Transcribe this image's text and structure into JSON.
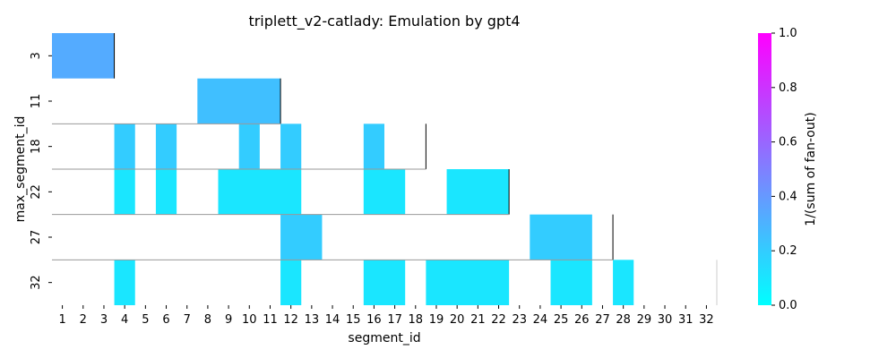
{
  "chart_data": {
    "type": "heatmap",
    "title": "triplett_v2-catlady: Emulation by gpt4",
    "xlabel": "segment_id",
    "ylabel": "max_segment_id",
    "x_ticks": [
      "1",
      "2",
      "3",
      "4",
      "5",
      "6",
      "7",
      "8",
      "9",
      "10",
      "11",
      "12",
      "13",
      "14",
      "15",
      "16",
      "17",
      "18",
      "19",
      "20",
      "21",
      "22",
      "23",
      "24",
      "25",
      "26",
      "27",
      "28",
      "29",
      "30",
      "31",
      "32"
    ],
    "rows": [
      {
        "label": "3",
        "cells": [
          {
            "from": 1,
            "to": 3,
            "value": 0.33
          }
        ]
      },
      {
        "label": "11",
        "cells": [
          {
            "from": 8,
            "to": 11,
            "value": 0.25
          }
        ]
      },
      {
        "label": "18",
        "cells": [
          {
            "from": 4,
            "to": 4,
            "value": 0.2
          },
          {
            "from": 6,
            "to": 6,
            "value": 0.2
          },
          {
            "from": 10,
            "to": 10,
            "value": 0.2
          },
          {
            "from": 12,
            "to": 12,
            "value": 0.2
          },
          {
            "from": 16,
            "to": 16,
            "value": 0.2
          }
        ]
      },
      {
        "label": "22",
        "cells": [
          {
            "from": 4,
            "to": 4,
            "value": 0.1
          },
          {
            "from": 6,
            "to": 6,
            "value": 0.1
          },
          {
            "from": 9,
            "to": 12,
            "value": 0.1
          },
          {
            "from": 16,
            "to": 17,
            "value": 0.1
          },
          {
            "from": 20,
            "to": 22,
            "value": 0.1
          }
        ]
      },
      {
        "label": "27",
        "cells": [
          {
            "from": 12,
            "to": 13,
            "value": 0.2
          },
          {
            "from": 24,
            "to": 26,
            "value": 0.2
          }
        ]
      },
      {
        "label": "32",
        "cells": [
          {
            "from": 4,
            "to": 4,
            "value": 0.1
          },
          {
            "from": 12,
            "to": 12,
            "value": 0.1
          },
          {
            "from": 16,
            "to": 17,
            "value": 0.1
          },
          {
            "from": 19,
            "to": 22,
            "value": 0.1
          },
          {
            "from": 25,
            "to": 26,
            "value": 0.1
          },
          {
            "from": 28,
            "to": 28,
            "value": 0.1
          }
        ]
      }
    ],
    "colorbar": {
      "label": "1/(sum of fan-out)",
      "min": 0.0,
      "max": 1.0,
      "ticks": [
        "0.0",
        "0.2",
        "0.4",
        "0.6",
        "0.8",
        "1.0"
      ],
      "colors": [
        "#00ffff",
        "#ff00ff"
      ]
    },
    "grid": false
  }
}
